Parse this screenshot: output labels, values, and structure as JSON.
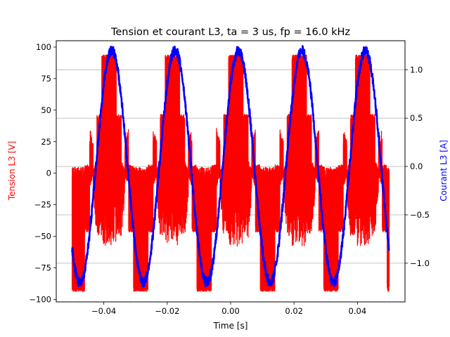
{
  "chart_data": {
    "type": "line",
    "title": "Tension et courant L3, ta = 3 us, fp = 16.0 kHz",
    "xlabel": "Time [s]",
    "ylabel_left": "Tension L3 [V]",
    "ylabel_right": "Courant L3 [A]",
    "xlim": [
      -0.055,
      0.055
    ],
    "ylim_left": [
      -102,
      105
    ],
    "ylim_right": [
      -1.4,
      1.3
    ],
    "x_ticks": [
      "−0.04",
      "−0.02",
      "0.00",
      "0.02",
      "0.04"
    ],
    "x_tick_values": [
      -0.04,
      -0.02,
      0.0,
      0.02,
      0.04
    ],
    "y_left_ticks": [
      "100",
      "75",
      "50",
      "25",
      "0",
      "−25",
      "−50",
      "−75",
      "−100"
    ],
    "y_left_tick_values": [
      100,
      75,
      50,
      25,
      0,
      -25,
      -50,
      -75,
      -100
    ],
    "y_right_ticks": [
      "1.0",
      "0.5",
      "0.0",
      "−0.5",
      "−1.0"
    ],
    "y_right_tick_values": [
      1.0,
      0.5,
      0.0,
      -0.5,
      -1.0
    ],
    "grid": "horizontal lines at right-axis ticks",
    "series": [
      {
        "axis": "left",
        "color": "#ff0000",
        "description_kind": "PWM phase voltage",
        "x_range": [
          -0.05,
          0.05
        ],
        "frequency_hz": 50,
        "envelope_peak": 94,
        "level_low": 3,
        "level_high": 42,
        "switching_frequency_hz": 16000
      },
      {
        "axis": "right",
        "color": "#0000ff",
        "description_kind": "sinusoidal current",
        "x_range": [
          -0.05,
          0.05
        ],
        "frequency_hz": 50,
        "amplitude": 1.2,
        "peak_time": 0.0025,
        "ripple": 0.05
      }
    ]
  }
}
